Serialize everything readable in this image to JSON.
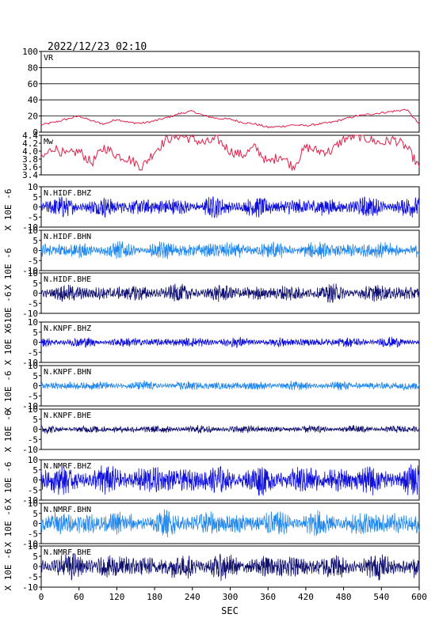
{
  "title": "2022/12/23 02:10",
  "xlabel": "SEC",
  "ylabel_waveform": "X 10E -6",
  "x_ticks": [
    "0",
    "60",
    "120",
    "180",
    "240",
    "300",
    "360",
    "420",
    "480",
    "540",
    "600"
  ],
  "colors": {
    "vr": "#e0204a",
    "mw": "#e0204a",
    "bhz": "#1010dd",
    "bhn": "#2288ee",
    "bhe": "#101070",
    "frame": "#000000"
  },
  "chart_data": [
    {
      "type": "line",
      "label": "VR",
      "xlim": [
        0,
        600
      ],
      "ylim": [
        0,
        100
      ],
      "y_ticks": [
        "0",
        "20",
        "40",
        "60",
        "80",
        "100"
      ],
      "grid": "horizontal",
      "series": [
        {
          "x": [
            0,
            20,
            40,
            60,
            80,
            100,
            120,
            140,
            160,
            180,
            200,
            220,
            240,
            260,
            280,
            300,
            320,
            340,
            360,
            380,
            400,
            420,
            440,
            460,
            480,
            500,
            520,
            540,
            560,
            580,
            600
          ],
          "values": [
            9,
            12,
            16,
            20,
            14,
            10,
            16,
            12,
            11,
            14,
            18,
            23,
            26,
            20,
            17,
            16,
            12,
            10,
            6,
            7,
            9,
            8,
            10,
            12,
            16,
            20,
            22,
            24,
            26,
            28,
            10
          ]
        }
      ]
    },
    {
      "type": "line",
      "label": "Mw",
      "xlim": [
        0,
        600
      ],
      "ylim": [
        3.4,
        4.4
      ],
      "y_ticks": [
        "3.4",
        "3.6",
        "3.8",
        "4.0",
        "4.2",
        "4.4"
      ],
      "series": [
        {
          "x": [
            0,
            20,
            40,
            60,
            80,
            100,
            120,
            140,
            160,
            180,
            200,
            220,
            240,
            260,
            280,
            300,
            320,
            340,
            360,
            380,
            400,
            420,
            440,
            460,
            480,
            500,
            520,
            540,
            560,
            580,
            600
          ],
          "values": [
            3.8,
            4.1,
            3.9,
            4.0,
            3.7,
            4.1,
            3.9,
            3.8,
            3.6,
            4.0,
            4.3,
            4.4,
            4.3,
            4.2,
            4.3,
            4.0,
            3.9,
            4.1,
            3.7,
            3.9,
            3.6,
            4.1,
            4.0,
            4.0,
            4.3,
            4.4,
            4.3,
            4.2,
            4.3,
            4.1,
            3.6
          ]
        }
      ]
    },
    {
      "type": "line",
      "label": "N.HIDF.BHZ",
      "xlim": [
        0,
        600
      ],
      "ylim": [
        -10,
        10
      ],
      "y_ticks": [
        "-10",
        "-5",
        "0",
        "5",
        "10"
      ],
      "color_key": "bhz",
      "amplitude": 3.0
    },
    {
      "type": "line",
      "label": "N.HIDF.BHN",
      "xlim": [
        0,
        600
      ],
      "ylim": [
        -10,
        10
      ],
      "y_ticks": [
        "-10",
        "-5",
        "0",
        "5",
        "10"
      ],
      "color_key": "bhn",
      "amplitude": 2.6
    },
    {
      "type": "line",
      "label": "N.HIDF.BHE",
      "xlim": [
        0,
        600
      ],
      "ylim": [
        -10,
        10
      ],
      "y_ticks": [
        "-10",
        "-5",
        "0",
        "5",
        "10"
      ],
      "color_key": "bhe",
      "amplitude": 2.6
    },
    {
      "type": "line",
      "label": "N.KNPF.BHZ",
      "xlim": [
        0,
        600
      ],
      "ylim": [
        -10,
        10
      ],
      "y_ticks": [
        "-10",
        "-5",
        "0",
        "5",
        "10"
      ],
      "color_key": "bhz",
      "amplitude": 1.5
    },
    {
      "type": "line",
      "label": "N.KNPF.BHN",
      "xlim": [
        0,
        600
      ],
      "ylim": [
        -10,
        10
      ],
      "y_ticks": [
        "-10",
        "-5",
        "0",
        "5",
        "10"
      ],
      "color_key": "bhn",
      "amplitude": 1.4
    },
    {
      "type": "line",
      "label": "N.KNPF.BHE",
      "xlim": [
        0,
        600
      ],
      "ylim": [
        -10,
        10
      ],
      "y_ticks": [
        "-10",
        "-5",
        "0",
        "5",
        "10"
      ],
      "color_key": "bhe",
      "amplitude": 1.2
    },
    {
      "type": "line",
      "label": "N.NMRF.BHZ",
      "xlim": [
        0,
        600
      ],
      "ylim": [
        -10,
        10
      ],
      "y_ticks": [
        "-10",
        "-5",
        "0",
        "5",
        "10"
      ],
      "color_key": "bhz",
      "amplitude": 4.5
    },
    {
      "type": "line",
      "label": "N.NMRF.BHN",
      "xlim": [
        0,
        600
      ],
      "ylim": [
        -10,
        10
      ],
      "y_ticks": [
        "-10",
        "-5",
        "0",
        "5",
        "10"
      ],
      "color_key": "bhn",
      "amplitude": 3.8
    },
    {
      "type": "line",
      "label": "N.NMRF.BHE",
      "xlim": [
        0,
        600
      ],
      "ylim": [
        -10,
        10
      ],
      "y_ticks": [
        "-10",
        "-5",
        "0",
        "5",
        "10"
      ],
      "color_key": "bhe",
      "amplitude": 3.8
    }
  ]
}
